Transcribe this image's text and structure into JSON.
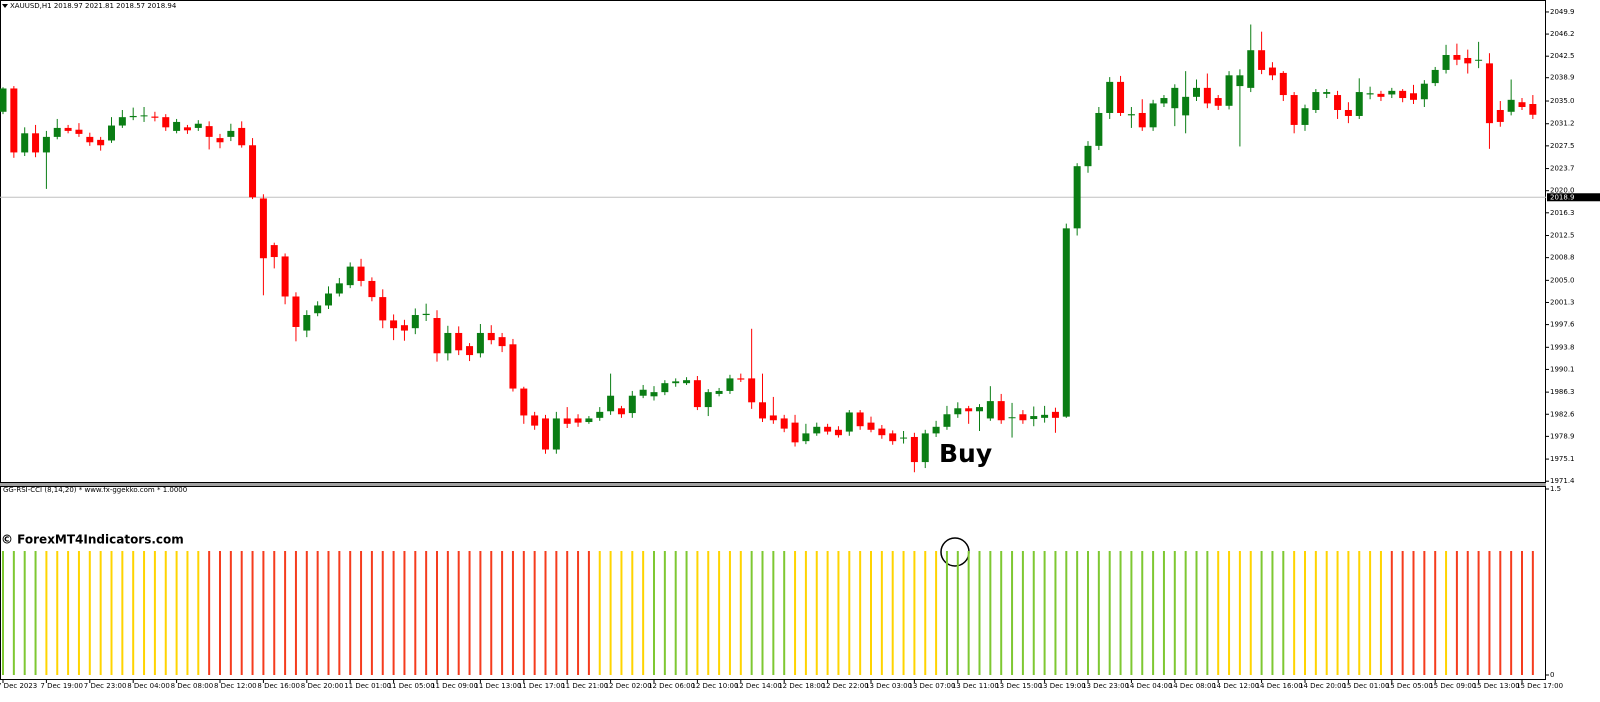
{
  "chart_data": [
    {
      "type": "candlestick",
      "title": "XAUUSD,H1  2018.97 2021.81 2018.57 2018.94",
      "annotation": "Buy",
      "watermark": "© ForexMT4Indicators.com",
      "up_color": "#0a7d14",
      "down_color": "#ff0000",
      "ylim": [
        1971.1,
        2051.9
      ],
      "yticks": [
        2049.9,
        2046.2,
        2042.5,
        2038.9,
        {
          "value": 2035,
          "label": "2035.0"
        },
        2031.2,
        2027.5,
        2023.7,
        {
          "value": 2020,
          "label": "2020.0"
        },
        2016.3,
        2012.5,
        2008.8,
        {
          "value": 2005,
          "label": "2005.0"
        },
        2001.3,
        1997.6,
        1993.8,
        1990.1,
        1986.3,
        1982.6,
        1978.9,
        1975.1,
        1971.4
      ],
      "price_line": 2018.9,
      "categories": [
        "7 Dec 2023",
        null,
        null,
        null,
        "7 Dec 19:00",
        null,
        null,
        null,
        "7 Dec 23:00",
        null,
        null,
        null,
        "8 Dec 04:00",
        null,
        null,
        null,
        "8 Dec 08:00",
        null,
        null,
        null,
        "8 Dec 12:00",
        null,
        null,
        null,
        "8 Dec 16:00",
        null,
        null,
        null,
        "8 Dec 20:00",
        null,
        null,
        null,
        "11 Dec 01:00",
        null,
        null,
        null,
        "11 Dec 05:00",
        null,
        null,
        null,
        "11 Dec 09:00",
        null,
        null,
        null,
        "11 Dec 13:00",
        null,
        null,
        null,
        "11 Dec 17:00",
        null,
        null,
        null,
        "11 Dec 21:00",
        null,
        null,
        null,
        "12 Dec 02:00",
        null,
        null,
        null,
        "12 Dec 06:00",
        null,
        null,
        null,
        "12 Dec 10:00",
        null,
        null,
        null,
        "12 Dec 14:00",
        null,
        null,
        null,
        "12 Dec 18:00",
        null,
        null,
        null,
        "12 Dec 22:00",
        null,
        null,
        null,
        "13 Dec 03:00",
        null,
        null,
        null,
        "13 Dec 07:00",
        null,
        null,
        null,
        "13 Dec 11:00",
        null,
        null,
        null,
        "13 Dec 15:00",
        null,
        null,
        null,
        "13 Dec 19:00",
        null,
        null,
        null,
        "13 Dec 23:00",
        null,
        null,
        null,
        "14 Dec 04:00",
        null,
        null,
        null,
        "14 Dec 08:00",
        null,
        null,
        null,
        "14 Dec 12:00",
        null,
        null,
        null,
        "14 Dec 16:00",
        null,
        null,
        null,
        "14 Dec 20:00",
        null,
        null,
        null,
        "15 Dec 01:00",
        null,
        null,
        null,
        "15 Dec 05:00",
        null,
        null,
        null,
        "15 Dec 09:00",
        null,
        null,
        null,
        "15 Dec 13:00",
        null,
        null,
        null,
        "15 Dec 17:00",
        null
      ],
      "open": [
        2033.2,
        2037.1,
        2026.4,
        2029.6,
        2026.4,
        2029.0,
        2030.5,
        2030.2,
        2029.0,
        2028.5,
        2028.4,
        2030.9,
        2032.3,
        2032.6,
        2032.4,
        2032.3,
        2030.0,
        2030.6,
        2030.5,
        2030.8,
        2028.8,
        2029.0,
        2030.5,
        2027.6,
        2018.7,
        2010.9,
        2009.0,
        2002.3,
        1996.6,
        1999.5,
        2000.8,
        2002.8,
        2004.2,
        2007.3,
        2004.9,
        2002.2,
        1998.3,
        1997.5,
        1997.0,
        1999.2,
        1998.7,
        1992.8,
        1996.2,
        1994.0,
        1992.8,
        1996.2,
        1995.5,
        1994.3,
        1986.9,
        1982.4,
        1981.9,
        1976.7,
        1981.9,
        1981.9,
        1981.3,
        1982.0,
        1983.1,
        1983.6,
        1982.8,
        1985.7,
        1985.6,
        1986.3,
        1987.8,
        1987.8,
        1988.3,
        1983.8,
        1986.0,
        1986.5,
        1988.6,
        1988.6,
        1984.6,
        1982.4,
        1981.9,
        1981.2,
        1978.1,
        1979.4,
        1980.5,
        1980.0,
        1979.7,
        1982.9,
        1981.2,
        1980.2,
        1979.4,
        1978.6,
        1978.8,
        1974.6,
        1979.4,
        1980.5,
        1982.6,
        1983.6,
        1983.1,
        1981.9,
        1984.8,
        1982.0,
        1982.6,
        1981.8,
        1982.0,
        1983.0,
        1982.2,
        2013.7,
        2024.1,
        2027.5,
        2033.0,
        2038.2,
        2032.6,
        2033.0,
        2030.6,
        2034.6,
        2033.8,
        2032.6,
        2035.7,
        2037.2,
        2035.5,
        2034.2,
        2037.5,
        2037.2,
        2043.5,
        2040.6,
        2039.7,
        2036.0,
        2031.0,
        2033.5,
        2036.2,
        2036.0,
        2033.5,
        2032.5,
        2036.1,
        2036.2,
        2036.1,
        2036.7,
        2036.3,
        2035.3,
        2038.0,
        2040.2,
        2042.7,
        2042.2,
        2041.8,
        2041.3,
        2033.5,
        2033.2,
        2034.8,
        2034.5
      ],
      "high": [
        2037.3,
        2037.5,
        2030.6,
        2031.0,
        2030.0,
        2032.0,
        2031.0,
        2031.3,
        2029.7,
        2029.0,
        2032.3,
        2033.5,
        2033.9,
        2034.0,
        2033.2,
        2032.8,
        2032.0,
        2031.0,
        2031.8,
        2031.6,
        2029.5,
        2031.2,
        2031.6,
        2028.8,
        2019.4,
        2011.3,
        2009.5,
        2003.0,
        2000.0,
        2001.5,
        2004.0,
        2005.4,
        2008.0,
        2008.6,
        2005.5,
        2003.5,
        1999.3,
        1998.4,
        2000.3,
        2001.1,
        2000.0,
        1997.4,
        1997.3,
        1994.5,
        1997.7,
        1997.5,
        1996.2,
        1995.2,
        1987.2,
        1983.0,
        1982.5,
        1983.0,
        1983.8,
        1982.6,
        1982.3,
        1983.8,
        1989.4,
        1984.0,
        1986.5,
        1987.5,
        1987.3,
        1988.3,
        1988.6,
        1988.8,
        1989.0,
        1986.8,
        1987.0,
        1989.2,
        1989.4,
        1996.9,
        1989.4,
        1985.5,
        1982.5,
        1982.5,
        1981.0,
        1981.2,
        1981.0,
        1980.6,
        1983.3,
        1983.3,
        1982.2,
        1980.8,
        1979.9,
        1979.8,
        1979.5,
        1980.0,
        1981.5,
        1984.0,
        1984.6,
        1984.0,
        1984.3,
        1987.3,
        1986.0,
        1984.5,
        1983.3,
        1983.9,
        1984.0,
        1983.7,
        2014.5,
        2024.6,
        2028.3,
        2034.0,
        2039.0,
        2039.2,
        2034.0,
        2035.3,
        2035.2,
        2036.0,
        2037.8,
        2040.0,
        2038.6,
        2039.6,
        2036.0,
        2040.0,
        2040.3,
        2047.8,
        2046.6,
        2041.5,
        2040.0,
        2036.5,
        2034.4,
        2037.0,
        2037.0,
        2036.7,
        2034.8,
        2038.8,
        2037.4,
        2036.7,
        2037.2,
        2037.0,
        2037.7,
        2038.5,
        2040.7,
        2044.4,
        2044.6,
        2043.6,
        2044.9,
        2043.0,
        2035.0,
        2038.6,
        2035.5,
        2036.0
      ],
      "low": [
        2032.8,
        2025.5,
        2025.8,
        2025.6,
        2020.3,
        2028.6,
        2029.6,
        2029.0,
        2027.5,
        2026.7,
        2028.0,
        2030.5,
        2031.8,
        2031.5,
        2031.6,
        2030.0,
        2029.6,
        2029.5,
        2030.0,
        2026.9,
        2027.1,
        2028.3,
        2027.2,
        2018.6,
        2002.5,
        2007.0,
        2001.0,
        1994.8,
        1995.5,
        1999.0,
        2000.2,
        2002.3,
        2003.7,
        2004.0,
        2001.5,
        1997.0,
        1995.0,
        1994.9,
        1996.0,
        1998.2,
        1991.4,
        1991.6,
        1992.5,
        1991.5,
        1992.1,
        1994.3,
        1993.0,
        1986.4,
        1981.0,
        1980.0,
        1976.0,
        1976.0,
        1980.3,
        1980.5,
        1981.0,
        1981.5,
        1982.5,
        1982.0,
        1982.0,
        1985.3,
        1984.9,
        1985.8,
        1987.2,
        1987.5,
        1983.3,
        1982.3,
        1985.6,
        1986.0,
        1988.0,
        1983.5,
        1981.3,
        1981.0,
        1979.6,
        1977.2,
        1977.6,
        1979.0,
        1979.2,
        1978.7,
        1979.0,
        1980.0,
        1979.6,
        1978.5,
        1977.5,
        1977.7,
        1972.9,
        1973.6,
        1978.8,
        1980.0,
        1982.0,
        1981.0,
        1979.8,
        1981.5,
        1981.0,
        1978.7,
        1981.0,
        1980.6,
        1981.2,
        1979.5,
        1982.0,
        2012.5,
        2023.0,
        2026.8,
        2032.0,
        2032.5,
        2030.5,
        2030.0,
        2030.0,
        2034.0,
        2030.8,
        2029.6,
        2035.0,
        2033.8,
        2033.5,
        2033.6,
        2027.4,
        2036.5,
        2039.5,
        2038.5,
        2035.0,
        2029.6,
        2030.0,
        2033.0,
        2035.5,
        2032.0,
        2031.3,
        2032.0,
        2035.3,
        2035.0,
        2035.5,
        2034.8,
        2034.5,
        2034.0,
        2037.5,
        2039.6,
        2041.0,
        2039.6,
        2040.5,
        2027.0,
        2030.7,
        2032.6,
        2033.5,
        2032.0
      ],
      "close": [
        2037.1,
        2026.4,
        2029.6,
        2026.4,
        2029.0,
        2030.5,
        2030.0,
        2029.5,
        2028.1,
        2027.6,
        2030.9,
        2032.3,
        2032.5,
        2032.6,
        2032.2,
        2030.6,
        2031.5,
        2030.1,
        2031.2,
        2029.0,
        2028.1,
        2030.0,
        2027.6,
        2018.9,
        2008.7,
        2008.9,
        2002.3,
        1997.2,
        1999.2,
        2000.8,
        2002.8,
        2004.5,
        2007.3,
        2004.9,
        2002.2,
        1998.3,
        1997.0,
        1996.6,
        1999.2,
        1999.4,
        1992.8,
        1996.2,
        1993.3,
        1992.5,
        1996.2,
        1995.0,
        1994.0,
        1986.9,
        1982.4,
        1980.7,
        1976.7,
        1981.9,
        1981.0,
        1981.2,
        1981.9,
        1983.0,
        1985.7,
        1982.6,
        1985.7,
        1986.7,
        1986.3,
        1987.8,
        1988.1,
        1988.3,
        1983.8,
        1986.3,
        1986.5,
        1988.6,
        1988.4,
        1984.6,
        1981.9,
        1981.6,
        1980.2,
        1977.9,
        1979.4,
        1980.5,
        1979.7,
        1979.1,
        1982.9,
        1980.6,
        1980.0,
        1979.1,
        1978.1,
        1978.7,
        1974.6,
        1979.4,
        1980.5,
        1982.6,
        1983.6,
        1983.1,
        1983.8,
        1984.8,
        1981.6,
        1982.1,
        1981.6,
        1982.3,
        1982.5,
        1982.0,
        2013.7,
        2024.1,
        2027.5,
        2033.0,
        2038.2,
        2033.0,
        2032.8,
        2030.6,
        2034.6,
        2035.5,
        2037.2,
        2035.7,
        2037.2,
        2034.6,
        2034.2,
        2039.3,
        2039.3,
        2043.5,
        2040.2,
        2039.3,
        2036.0,
        2031.0,
        2033.8,
        2036.5,
        2036.5,
        2033.5,
        2032.5,
        2036.5,
        2036.3,
        2035.7,
        2036.7,
        2035.5,
        2035.2,
        2037.9,
        2040.2,
        2042.7,
        2041.9,
        2041.3,
        2041.9,
        2031.3,
        2031.5,
        2035.2,
        2034.0,
        2032.7
      ]
    },
    {
      "type": "bar",
      "title": "GG-RSI-CCI (8,14,20) * www.fx-ggekko.com *  1.0000",
      "ylim": [
        0,
        1.5
      ],
      "yticks": [
        1.5,
        0
      ],
      "values": [
        1,
        1,
        1,
        1,
        1,
        1,
        1,
        1,
        1,
        1,
        1,
        1,
        1,
        1,
        1,
        1,
        1,
        1,
        1,
        1,
        1,
        1,
        1,
        1,
        1,
        1,
        1,
        1,
        1,
        1,
        1,
        1,
        1,
        1,
        1,
        1,
        1,
        1,
        1,
        1,
        1,
        1,
        1,
        1,
        1,
        1,
        1,
        1,
        1,
        1,
        1,
        1,
        1,
        1,
        1,
        1,
        1,
        1,
        1,
        1,
        1,
        1,
        1,
        1,
        1,
        1,
        1,
        1,
        1,
        1,
        1,
        1,
        1,
        1,
        1,
        1,
        1,
        1,
        1,
        1,
        1,
        1,
        1,
        1,
        1,
        1,
        1,
        1,
        1,
        1,
        1,
        1,
        1,
        1,
        1,
        1,
        1,
        1,
        1,
        1,
        1,
        1,
        1,
        1,
        1,
        1,
        1,
        1,
        1,
        1,
        1,
        1,
        1,
        1,
        1,
        1,
        1,
        1,
        1,
        1,
        1,
        1,
        1,
        1,
        1,
        1,
        1,
        1,
        1,
        1,
        1,
        1,
        1,
        1,
        1,
        1,
        1,
        1,
        1,
        1,
        1,
        1
      ],
      "colors": [
        "#7ec832",
        "#7ec832",
        "#7ec832",
        "#7ec832",
        "#ffd400",
        "#ffd400",
        "#ffd400",
        "#ffd400",
        "#ffd400",
        "#ffd400",
        "#ffd400",
        "#ffd400",
        "#ffd400",
        "#ffd400",
        "#ffd400",
        "#ffd400",
        "#ffd400",
        "#ffd400",
        "#ffd400",
        "#f53c1e",
        "#f53c1e",
        "#f53c1e",
        "#f53c1e",
        "#f53c1e",
        "#f53c1e",
        "#f53c1e",
        "#f53c1e",
        "#f53c1e",
        "#f53c1e",
        "#f53c1e",
        "#f53c1e",
        "#f53c1e",
        "#f53c1e",
        "#f53c1e",
        "#f53c1e",
        "#f53c1e",
        "#f53c1e",
        "#f53c1e",
        "#f53c1e",
        "#f53c1e",
        "#f53c1e",
        "#f53c1e",
        "#f53c1e",
        "#f53c1e",
        "#f53c1e",
        "#f53c1e",
        "#f53c1e",
        "#f53c1e",
        "#f53c1e",
        "#f53c1e",
        "#f53c1e",
        "#f53c1e",
        "#f53c1e",
        "#f53c1e",
        "#f53c1e",
        "#ffd400",
        "#ffd400",
        "#ffd400",
        "#ffd400",
        "#ffd400",
        "#7ec832",
        "#7ec832",
        "#7ec832",
        "#7ec832",
        "#ffd400",
        "#ffd400",
        "#ffd400",
        "#ffd400",
        "#ffd400",
        "#7ec832",
        "#7ec832",
        "#7ec832",
        "#7ec832",
        "#ffd400",
        "#ffd400",
        "#ffd400",
        "#ffd400",
        "#ffd400",
        "#ffd400",
        "#ffd400",
        "#ffd400",
        "#ffd400",
        "#ffd400",
        "#ffd400",
        "#ffd400",
        "#ffd400",
        "#ffd400",
        "#7ec832",
        "#7ec832",
        "#7ec832",
        "#7ec832",
        "#7ec832",
        "#7ec832",
        "#7ec832",
        "#7ec832",
        "#7ec832",
        "#7ec832",
        "#7ec832",
        "#7ec832",
        "#7ec832",
        "#7ec832",
        "#7ec832",
        "#7ec832",
        "#7ec832",
        "#7ec832",
        "#7ec832",
        "#7ec832",
        "#7ec832",
        "#7ec832",
        "#7ec832",
        "#7ec832",
        "#7ec832",
        "#ffd400",
        "#ffd400",
        "#ffd400",
        "#ffd400",
        "#7ec832",
        "#7ec832",
        "#7ec832",
        "#ffd400",
        "#ffd400",
        "#ffd400",
        "#ffd400",
        "#ffd400",
        "#ffd400",
        "#ffd400",
        "#ffd400",
        "#ffd400",
        "#f53c1e",
        "#f53c1e",
        "#f53c1e",
        "#f53c1e",
        "#f53c1e",
        "#ffd400",
        "#f53c1e",
        "#f53c1e",
        "#f53c1e",
        "#f53c1e",
        "#f53c1e",
        "#f53c1e",
        "#f53c1e",
        "#f53c1e"
      ]
    }
  ]
}
